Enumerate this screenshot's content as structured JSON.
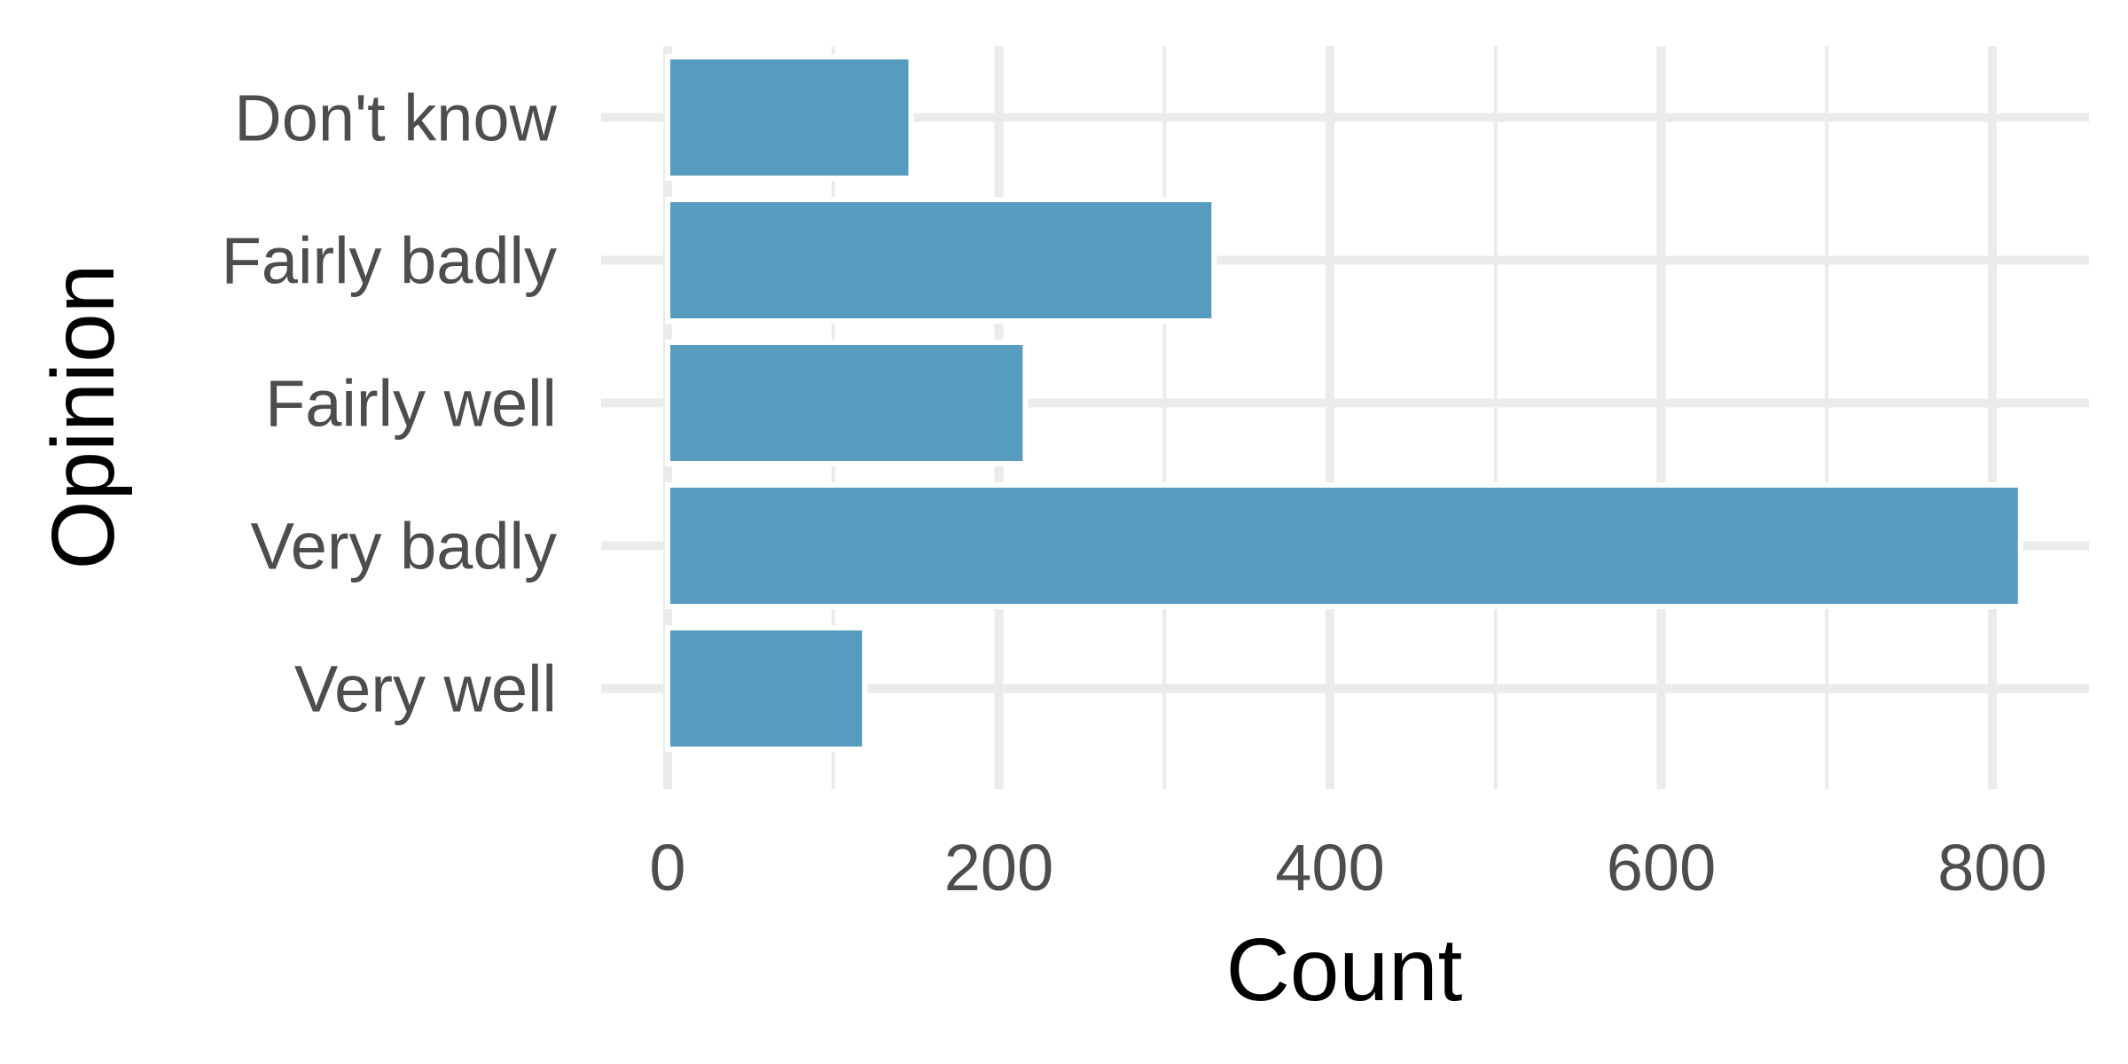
{
  "chart_data": {
    "type": "bar",
    "orientation": "horizontal",
    "categories": [
      "Don't know",
      "Fairly badly",
      "Fairly well",
      "Very badly",
      "Very well"
    ],
    "values": [
      147,
      330,
      216,
      817,
      119
    ],
    "xlabel": "Count",
    "ylabel": "Opinion",
    "xlim": [
      0,
      860
    ],
    "x_ticks": [
      0,
      200,
      400,
      600,
      800
    ],
    "x_tick_labels": [
      "0",
      "200",
      "400",
      "600",
      "800"
    ],
    "x_minor_ticks": [
      100,
      300,
      500,
      700
    ],
    "grid": true,
    "legend": "none",
    "colors": {
      "bar": "#579cbf",
      "grid": "#ebebeb",
      "tick_text": "#4d4d4d",
      "title_text": "#000000",
      "background": "#ffffff"
    }
  }
}
